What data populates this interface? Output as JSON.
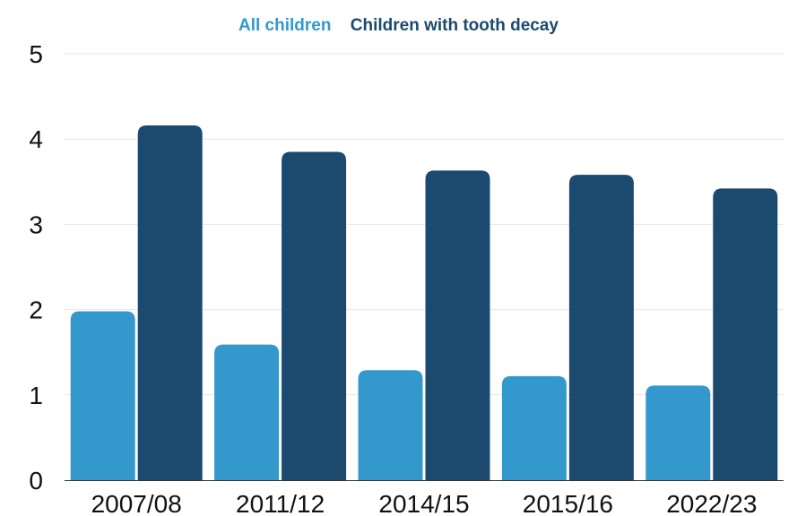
{
  "chart_data": {
    "type": "bar",
    "categories": [
      "2007/08",
      "2011/12",
      "2014/15",
      "2015/16",
      "2022/23"
    ],
    "series": [
      {
        "name": "All children",
        "color": "#3399cc",
        "values": [
          1.98,
          1.59,
          1.29,
          1.22,
          1.11
        ]
      },
      {
        "name": "Children with tooth decay",
        "color": "#1b4a6e",
        "values": [
          4.16,
          3.85,
          3.63,
          3.58,
          3.42
        ]
      }
    ],
    "ylim": [
      0,
      5
    ],
    "yticks": [
      "0",
      "1",
      "2",
      "3",
      "4",
      "5"
    ],
    "grid": true,
    "legend_position": "top-center"
  }
}
